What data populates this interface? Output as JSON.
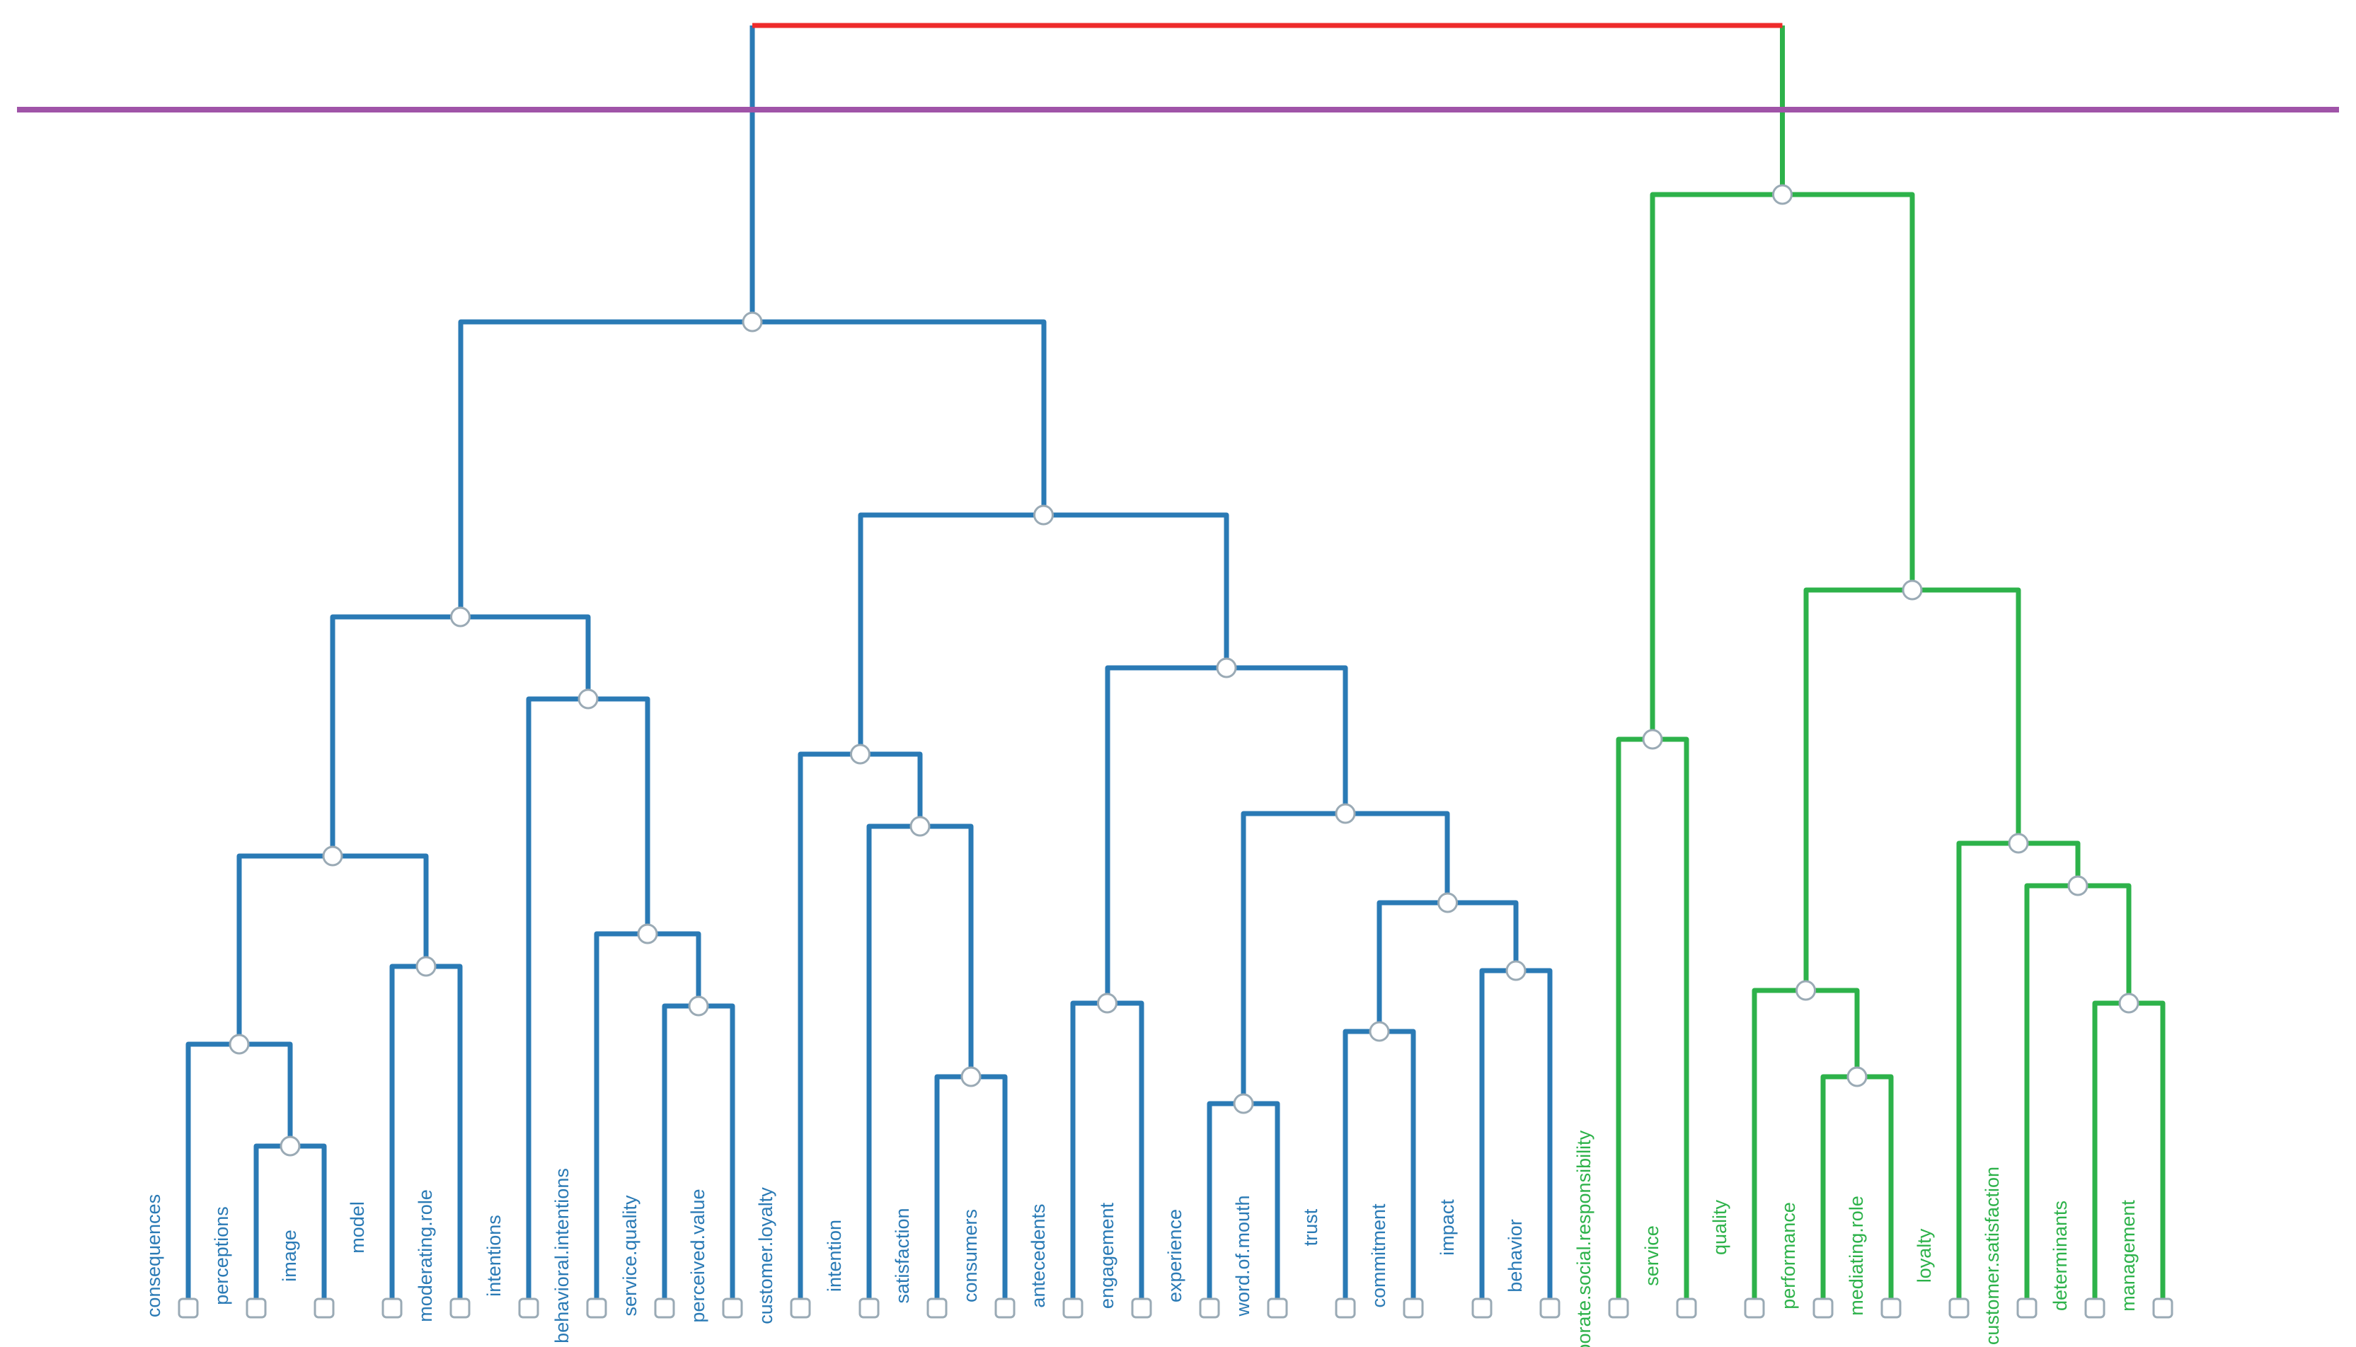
{
  "colors": {
    "blue_cluster": "#2a7ab5",
    "green_cluster": "#2db24a",
    "root_link": "#ee2b2b",
    "cut_line": "#a054a8",
    "node_fill": "#ffffff",
    "node_stroke": "#9aaab5"
  },
  "leaves": [
    {
      "id": "L0",
      "label": "consequences",
      "cluster": "blue"
    },
    {
      "id": "L1",
      "label": "perceptions",
      "cluster": "blue"
    },
    {
      "id": "L2",
      "label": "image",
      "cluster": "blue"
    },
    {
      "id": "L3",
      "label": "model",
      "cluster": "blue"
    },
    {
      "id": "L4",
      "label": "moderating.role",
      "cluster": "blue"
    },
    {
      "id": "L5",
      "label": "intentions",
      "cluster": "blue"
    },
    {
      "id": "L6",
      "label": "behavioral.intentions",
      "cluster": "blue"
    },
    {
      "id": "L7",
      "label": "service.quality",
      "cluster": "blue"
    },
    {
      "id": "L8",
      "label": "perceived.value",
      "cluster": "blue"
    },
    {
      "id": "L9",
      "label": "customer.loyalty",
      "cluster": "blue"
    },
    {
      "id": "L10",
      "label": "intention",
      "cluster": "blue"
    },
    {
      "id": "L11",
      "label": "satisfaction",
      "cluster": "blue"
    },
    {
      "id": "L12",
      "label": "consumers",
      "cluster": "blue"
    },
    {
      "id": "L13",
      "label": "antecedents",
      "cluster": "blue"
    },
    {
      "id": "L14",
      "label": "engagement",
      "cluster": "blue"
    },
    {
      "id": "L15",
      "label": "experience",
      "cluster": "blue"
    },
    {
      "id": "L16",
      "label": "word.of.mouth",
      "cluster": "blue"
    },
    {
      "id": "L17",
      "label": "trust",
      "cluster": "blue"
    },
    {
      "id": "L18",
      "label": "commitment",
      "cluster": "blue"
    },
    {
      "id": "L19",
      "label": "impact",
      "cluster": "blue"
    },
    {
      "id": "L20",
      "label": "behavior",
      "cluster": "blue"
    },
    {
      "id": "L21",
      "label": "corporate.social.responsibility",
      "cluster": "green"
    },
    {
      "id": "L22",
      "label": "service",
      "cluster": "green"
    },
    {
      "id": "L23",
      "label": "quality",
      "cluster": "green"
    },
    {
      "id": "L24",
      "label": "performance",
      "cluster": "green"
    },
    {
      "id": "L25",
      "label": "mediating.role",
      "cluster": "green"
    },
    {
      "id": "L26",
      "label": "loyalty",
      "cluster": "green"
    },
    {
      "id": "L27",
      "label": "customer.satisfaction",
      "cluster": "green"
    },
    {
      "id": "L28",
      "label": "determinants",
      "cluster": "green"
    },
    {
      "id": "L29",
      "label": "management",
      "cluster": "green"
    }
  ],
  "merges": [
    {
      "id": "n1",
      "children": [
        "L1",
        "L2"
      ],
      "height": 0.09,
      "cluster": "blue"
    },
    {
      "id": "n2",
      "children": [
        "L0",
        "n1"
      ],
      "height": 0.14,
      "cluster": "blue"
    },
    {
      "id": "n3",
      "children": [
        "L3",
        "L4"
      ],
      "height": 0.17,
      "cluster": "blue"
    },
    {
      "id": "n4",
      "children": [
        "n2",
        "n3"
      ],
      "height": 0.23,
      "cluster": "blue"
    },
    {
      "id": "n5",
      "children": [
        "L7",
        "n6"
      ],
      "height": 0.19,
      "cluster": "blue"
    },
    {
      "id": "n6",
      "children": [
        "L8",
        "L8b"
      ],
      "height": 0.15,
      "cluster": "blue"
    },
    {
      "id": "n7",
      "children": [
        "L5",
        "n5"
      ],
      "height": 0.3,
      "cluster": "blue"
    },
    {
      "id": "n8",
      "children": [
        "n4",
        "n7"
      ],
      "height": 0.36,
      "cluster": "blue"
    },
    {
      "id": "n9",
      "children": [
        "L11",
        "L12"
      ],
      "height": 0.12,
      "cluster": "blue"
    },
    {
      "id": "n10",
      "children": [
        "L10",
        "n9"
      ],
      "height": 0.24,
      "cluster": "blue"
    },
    {
      "id": "n11",
      "children": [
        "L9",
        "n10"
      ],
      "height": 0.28,
      "cluster": "blue"
    },
    {
      "id": "n12",
      "children": [
        "L13",
        "L14"
      ],
      "height": 0.15,
      "cluster": "blue"
    },
    {
      "id": "n13",
      "children": [
        "L15",
        "L16"
      ],
      "height": 0.1,
      "cluster": "blue"
    },
    {
      "id": "n14",
      "children": [
        "L17",
        "L18"
      ],
      "height": 0.14,
      "cluster": "blue"
    },
    {
      "id": "n15",
      "children": [
        "L19",
        "L20"
      ],
      "height": 0.17,
      "cluster": "blue"
    },
    {
      "id": "n16",
      "children": [
        "n14",
        "n15"
      ],
      "height": 0.2,
      "cluster": "blue"
    },
    {
      "id": "n17",
      "children": [
        "n13",
        "n16"
      ],
      "height": 0.25,
      "cluster": "blue"
    },
    {
      "id": "n18",
      "children": [
        "n12",
        "n17"
      ],
      "height": 0.32,
      "cluster": "blue"
    },
    {
      "id": "n19",
      "children": [
        "n11",
        "n18"
      ],
      "height": 0.4,
      "cluster": "blue"
    },
    {
      "id": "n20",
      "children": [
        "n8",
        "n19"
      ],
      "height": 0.5,
      "cluster": "blue"
    },
    {
      "id": "n21",
      "children": [
        "L21",
        "L22"
      ],
      "height": 0.29,
      "cluster": "green"
    },
    {
      "id": "n22",
      "children": [
        "L25",
        "L25b"
      ],
      "height": 0.11,
      "cluster": "green"
    },
    {
      "id": "n23",
      "children": [
        "L23",
        "n22"
      ],
      "height": 0.16,
      "cluster": "green"
    },
    {
      "id": "n24",
      "children": [
        "L28",
        "L29"
      ],
      "height": 0.15,
      "cluster": "green"
    },
    {
      "id": "n25",
      "children": [
        "L27",
        "n24"
      ],
      "height": 0.21,
      "cluster": "green"
    },
    {
      "id": "n26",
      "children": [
        "L26",
        "n25"
      ],
      "height": 0.23,
      "cluster": "green"
    },
    {
      "id": "n27",
      "children": [
        "n23",
        "n26"
      ],
      "height": 0.37,
      "cluster": "green"
    },
    {
      "id": "n28",
      "children": [
        "n21",
        "n27"
      ],
      "height": 0.57,
      "cluster": "green"
    },
    {
      "id": "root",
      "children": [
        "n20",
        "n28"
      ],
      "height": 0.66,
      "cluster": "root"
    }
  ],
  "cut_height": 0.61
}
